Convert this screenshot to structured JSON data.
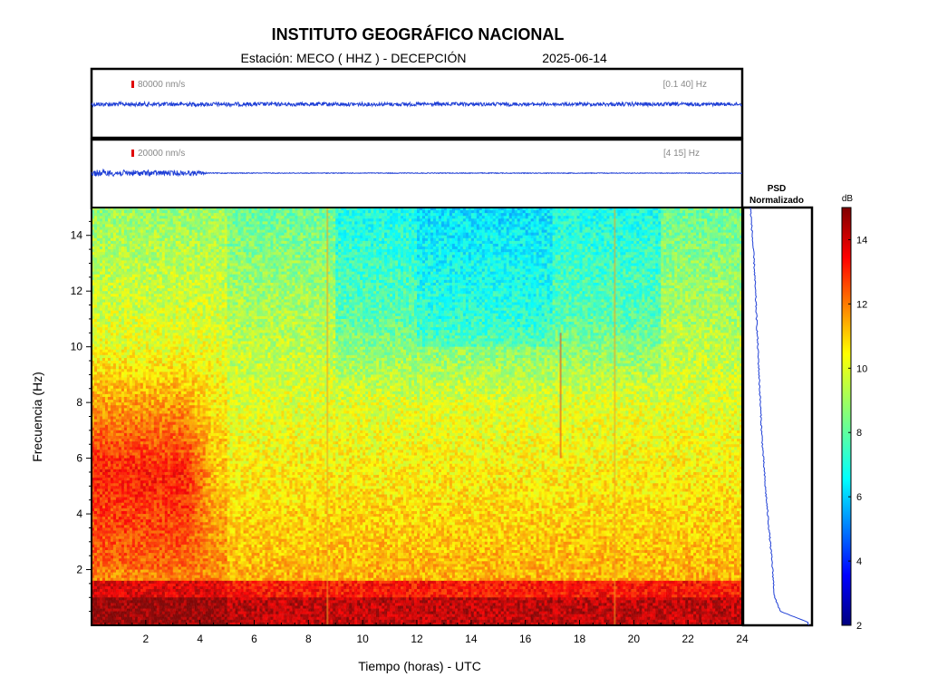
{
  "header": {
    "title": "INSTITUTO GEOGRÁFICO NACIONAL",
    "station": "Estación:  MECO ( HHZ ) - DECEPCIÓN",
    "date": "2025-06-14"
  },
  "chart_data": [
    {
      "type": "line",
      "name": "seismogram-broadband",
      "scale_label": "80000 nm/s",
      "band_label": "[0.1 40] Hz",
      "xlim": [
        0,
        24
      ],
      "color": "#1f3fd6",
      "amplitude_profile": {
        "x": [
          0,
          6,
          12,
          16,
          18,
          20,
          24
        ],
        "amp": [
          0.6,
          0.55,
          0.5,
          0.5,
          0.45,
          0.55,
          0.45
        ]
      }
    },
    {
      "type": "line",
      "name": "seismogram-filtered",
      "scale_label": "20000 nm/s",
      "band_label": "[4 15] Hz",
      "xlim": [
        0,
        24
      ],
      "color": "#1f3fd6",
      "amplitude_profile": {
        "x": [
          0,
          2,
          4,
          4.3,
          8.7,
          17.3,
          24
        ],
        "amp": [
          0.9,
          0.8,
          0.6,
          0.12,
          0.1,
          0.1,
          0.08
        ]
      }
    },
    {
      "type": "heatmap",
      "name": "spectrogram",
      "xlabel": "Tiempo (horas) - UTC",
      "ylabel": "Frecuencia  (Hz)",
      "xlim": [
        0,
        24
      ],
      "ylim": [
        0,
        15
      ],
      "xticks": [
        2,
        4,
        6,
        8,
        10,
        12,
        14,
        16,
        18,
        20,
        22,
        24
      ],
      "yticks": [
        2,
        4,
        6,
        8,
        10,
        12,
        14
      ],
      "colorscale": "jet",
      "zlim": [
        2,
        15
      ],
      "vertical_events_hours": [
        8.7,
        17.3,
        19.3
      ],
      "noted_features": "high energy below 1 Hz, hot patch at 4-8 Hz during hours 0-4"
    },
    {
      "type": "line",
      "name": "psd-normalizado",
      "title": "PSD\nNormalizado",
      "ylim": [
        0,
        15
      ],
      "psd_freq": [
        0.1,
        0.5,
        1,
        2,
        3,
        4,
        5,
        6,
        7,
        8,
        9,
        10,
        11,
        12,
        13,
        14,
        15
      ],
      "psd_norm": [
        1.0,
        0.55,
        0.45,
        0.42,
        0.38,
        0.34,
        0.3,
        0.27,
        0.24,
        0.22,
        0.2,
        0.18,
        0.16,
        0.14,
        0.12,
        0.09,
        0.06
      ]
    }
  ],
  "colorbar": {
    "label": "dB",
    "ticks": [
      2,
      4,
      6,
      8,
      10,
      12,
      14
    ],
    "range": [
      2,
      15
    ]
  }
}
